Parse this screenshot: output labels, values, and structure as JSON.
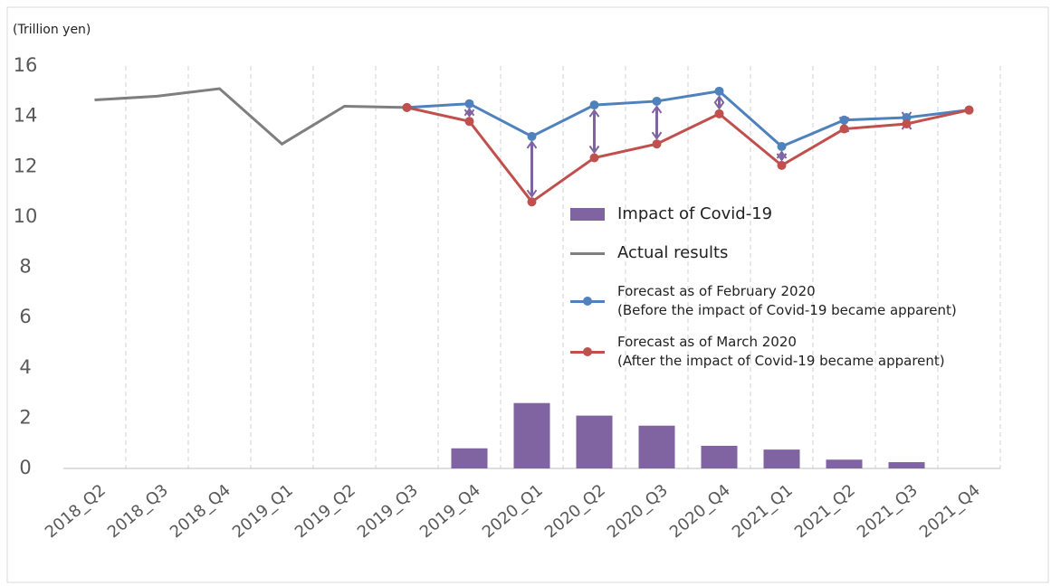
{
  "chart_data": {
    "type": "combo",
    "y_label": "(Trillion yen)",
    "categories": [
      "2018_Q2",
      "2018_Q3",
      "2018_Q4",
      "2019_Q1",
      "2019_Q2",
      "2019_Q3",
      "2019_Q4",
      "2020_Q1",
      "2020_Q2",
      "2020_Q3",
      "2020_Q4",
      "2021_Q1",
      "2021_Q2",
      "2021_Q3",
      "2021_Q4"
    ],
    "series": [
      {
        "name": "Impact of Covid-19",
        "type": "bar",
        "color": "#8064a2",
        "values": [
          null,
          null,
          null,
          null,
          null,
          null,
          0.8,
          2.6,
          2.1,
          1.7,
          0.9,
          0.75,
          0.35,
          0.25,
          null
        ]
      },
      {
        "name": "Actual results",
        "type": "line",
        "color": "#7f7f7f",
        "values": [
          14.65,
          14.8,
          15.1,
          12.9,
          14.4,
          14.35,
          null,
          null,
          null,
          null,
          null,
          null,
          null,
          null,
          null
        ]
      },
      {
        "name": "Forecast as of February 2020\n(Before the impact of Covid-19 became apparent)",
        "type": "line",
        "markers": true,
        "color": "#4f81bd",
        "values": [
          null,
          null,
          null,
          null,
          null,
          14.35,
          14.5,
          13.2,
          14.45,
          14.6,
          15.0,
          12.8,
          13.85,
          13.95,
          14.25
        ]
      },
      {
        "name": "Forecast as of March 2020\n(After the impact of Covid-19 became apparent)",
        "type": "line",
        "markers": true,
        "color": "#c0504d",
        "values": [
          null,
          null,
          null,
          null,
          null,
          14.35,
          13.8,
          10.6,
          12.35,
          12.9,
          14.1,
          12.05,
          13.5,
          13.7,
          14.25
        ]
      }
    ],
    "ylim": [
      0,
      16
    ],
    "yticks": [
      0,
      2,
      4,
      6,
      8,
      10,
      12,
      14,
      16
    ],
    "grid": true
  }
}
